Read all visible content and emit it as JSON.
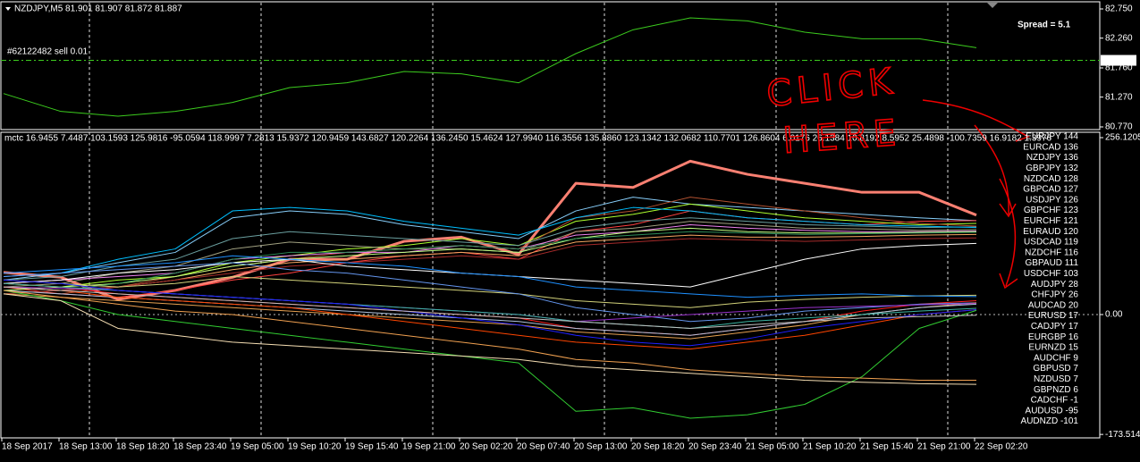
{
  "chart_data": [
    {
      "type": "line",
      "title": "NZDJPY,M5  81.901 81.907 81.872 81.887",
      "annotations": [
        "#62122482 sell 0.01",
        "Spread = 5.1"
      ],
      "values": [
        81.33,
        81.03,
        80.95,
        81.03,
        81.18,
        81.43,
        81.51,
        81.7,
        81.66,
        81.51,
        82.0,
        82.4,
        82.6,
        82.55,
        82.36,
        82.25,
        82.25,
        82.1
      ],
      "color": "#3ccc1e",
      "current_price": 81.887,
      "ylim": [
        80.725,
        82.855
      ],
      "yticks": [
        {
          "value": 82.75,
          "label": "82.750"
        },
        {
          "value": 82.26,
          "label": "82.260"
        },
        {
          "value": 81.76,
          "label": "81.760"
        },
        {
          "value": 81.27,
          "label": "81.270"
        },
        {
          "value": 80.77,
          "label": "80.770"
        }
      ],
      "grid": true
    },
    {
      "type": "line",
      "title": "mctc 16.9455 7.4487 103.1593 125.9816 -95.0594 118.9997 7.2813 15.9372 120.9459 143.6827 120.2264 136.2450 15.4624 127.9940 116.3556 135.8860 123.1342 132.0682 110.7701 126.8604 6.0176 26.1384 10.8192 8.5952 25.4898 -100.7359 16.9182 1.3976",
      "annotations": [
        "CLICK",
        "HERE"
      ],
      "categories": [
        "18 Sep 2017",
        "18 Sep 13:00",
        "18 Sep 18:20",
        "18 Sep 23:40",
        "19 Sep 05:00",
        "19 Sep 10:20",
        "19 Sep 15:40",
        "19 Sep 21:00",
        "20 Sep 02:20",
        "20 Sep 07:40",
        "20 Sep 13:00",
        "20 Sep 18:20",
        "20 Sep 23:40",
        "21 Sep 05:00",
        "21 Sep 10:20",
        "21 Sep 15:40",
        "21 Sep 21:00",
        "22 Sep 02:20"
      ],
      "ylim": [
        -178.5,
        263.9
      ],
      "yticks": [
        256.1205,
        {
          "value": 0,
          "label": "0.00"
        },
        -173.5147
      ],
      "legend": "right",
      "grid": true,
      "series": [
        {
          "name": "EURJPY 144",
          "color": "#fa8072",
          "width": 3,
          "values": [
            61,
            54,
            22,
            35,
            54,
            80,
            80,
            106,
            112,
            87,
            190,
            184,
            222,
            203,
            190,
            177,
            177,
            144
          ]
        },
        {
          "name": "EURCAD 136",
          "color": "#87cefa",
          "values": [
            50,
            60,
            75,
            90,
            140,
            150,
            145,
            130,
            120,
            110,
            150,
            170,
            160,
            155,
            150,
            145,
            140,
            136
          ]
        },
        {
          "name": "NZDJPY 136",
          "color": "#ff4040",
          "values": [
            40,
            30,
            25,
            35,
            50,
            60,
            75,
            85,
            90,
            80,
            120,
            130,
            150,
            140,
            135,
            130,
            135,
            136
          ]
        },
        {
          "name": "GBPJPY 132",
          "color": "#adff2f",
          "values": [
            45,
            40,
            50,
            55,
            75,
            85,
            95,
            100,
            110,
            100,
            135,
            145,
            160,
            150,
            140,
            135,
            130,
            132
          ]
        },
        {
          "name": "NZDCAD 128",
          "color": "#b05030",
          "values": [
            35,
            30,
            40,
            55,
            70,
            80,
            90,
            95,
            100,
            95,
            140,
            150,
            170,
            160,
            150,
            140,
            132,
            128
          ]
        },
        {
          "name": "GBPCAD 127",
          "color": "#6a9f9f",
          "values": [
            50,
            55,
            70,
            80,
            110,
            120,
            115,
            110,
            105,
            100,
            125,
            135,
            140,
            135,
            130,
            128,
            126,
            127
          ]
        },
        {
          "name": "USDJPY 126",
          "color": "#00bfff",
          "values": [
            55,
            60,
            80,
            95,
            150,
            155,
            150,
            135,
            125,
            115,
            140,
            155,
            150,
            140,
            135,
            130,
            128,
            126
          ]
        },
        {
          "name": "GBPCHF 123",
          "color": "#a0a080",
          "values": [
            40,
            45,
            60,
            70,
            95,
            105,
            100,
            95,
            95,
            90,
            120,
            125,
            135,
            130,
            125,
            124,
            122,
            123
          ]
        },
        {
          "name": "EURCHF 121",
          "color": "#ee82ee",
          "values": [
            45,
            50,
            55,
            60,
            80,
            85,
            90,
            90,
            100,
            95,
            115,
            120,
            130,
            125,
            122,
            120,
            120,
            121
          ]
        },
        {
          "name": "EURAUD 120",
          "color": "#c0ff80",
          "values": [
            35,
            40,
            45,
            55,
            70,
            80,
            85,
            90,
            95,
            90,
            110,
            120,
            125,
            120,
            118,
            118,
            119,
            120
          ]
        },
        {
          "name": "USDCAD 119",
          "color": "#2e8b57",
          "values": [
            30,
            35,
            45,
            60,
            80,
            90,
            90,
            95,
            100,
            95,
            110,
            115,
            120,
            118,
            116,
            117,
            118,
            119
          ]
        },
        {
          "name": "NZDCHF 116",
          "color": "#f4a460",
          "values": [
            40,
            35,
            40,
            50,
            65,
            75,
            80,
            85,
            90,
            85,
            105,
            110,
            115,
            112,
            112,
            113,
            115,
            116
          ]
        },
        {
          "name": "GBPAUD 111",
          "color": "#a52a2a",
          "values": [
            30,
            35,
            40,
            50,
            60,
            70,
            75,
            80,
            85,
            80,
            100,
            105,
            110,
            108,
            106,
            108,
            110,
            111
          ]
        },
        {
          "name": "USDCHF 103",
          "color": "#ffffff",
          "values": [
            45,
            50,
            60,
            65,
            75,
            80,
            70,
            65,
            60,
            55,
            50,
            45,
            40,
            60,
            80,
            95,
            100,
            103
          ]
        },
        {
          "name": "AUDJPY 28",
          "color": "#d2d27a",
          "values": [
            50,
            45,
            40,
            45,
            55,
            50,
            45,
            40,
            35,
            30,
            20,
            15,
            10,
            18,
            22,
            25,
            27,
            28
          ]
        },
        {
          "name": "CHFJPY 26",
          "color": "#1e90ff",
          "values": [
            60,
            65,
            70,
            75,
            85,
            80,
            75,
            70,
            60,
            55,
            40,
            35,
            30,
            25,
            28,
            30,
            27,
            26
          ]
        },
        {
          "name": "AUDCAD 20",
          "color": "#ff2020",
          "values": [
            45,
            40,
            30,
            25,
            20,
            15,
            10,
            5,
            0,
            -5,
            -20,
            -25,
            -30,
            -20,
            -10,
            5,
            15,
            20
          ]
        },
        {
          "name": "EURUSD 17",
          "color": "#6495ed",
          "values": [
            55,
            60,
            65,
            70,
            75,
            65,
            60,
            50,
            40,
            30,
            10,
            0,
            -10,
            -5,
            5,
            10,
            15,
            17
          ]
        },
        {
          "name": "CADJPY 17",
          "color": "#e6a050",
          "values": [
            30,
            25,
            20,
            15,
            10,
            5,
            0,
            -5,
            -10,
            -15,
            -25,
            -30,
            -35,
            -25,
            -15,
            0,
            10,
            17
          ]
        },
        {
          "name": "EURGBP 16",
          "color": "#9932cc",
          "values": [
            40,
            38,
            35,
            30,
            25,
            20,
            15,
            10,
            5,
            0,
            -10,
            -5,
            0,
            5,
            10,
            12,
            14,
            16
          ]
        },
        {
          "name": "EURNZD 15",
          "color": "#b0c4de",
          "values": [
            35,
            30,
            25,
            20,
            15,
            10,
            5,
            0,
            -5,
            -10,
            -20,
            -25,
            -30,
            -20,
            -10,
            0,
            10,
            15
          ]
        },
        {
          "name": "AUDCHF 9",
          "color": "#3cb3a0",
          "values": [
            45,
            40,
            35,
            30,
            25,
            20,
            15,
            10,
            5,
            0,
            -10,
            -15,
            -20,
            -10,
            -5,
            0,
            5,
            9
          ]
        },
        {
          "name": "GBPUSD 7",
          "color": "#ff4500",
          "values": [
            40,
            35,
            25,
            20,
            15,
            10,
            0,
            -10,
            -20,
            -30,
            -40,
            -45,
            -50,
            -40,
            -30,
            -15,
            0,
            7
          ]
        },
        {
          "name": "NZDUSD 7",
          "color": "#2020ff",
          "values": [
            50,
            45,
            35,
            30,
            25,
            20,
            15,
            5,
            -5,
            -15,
            -30,
            -40,
            -45,
            -35,
            -20,
            -10,
            0,
            7
          ]
        },
        {
          "name": "GBPNZD 6",
          "color": "#32cd32",
          "values": [
            35,
            20,
            0,
            -10,
            -20,
            -30,
            -40,
            -50,
            -60,
            -70,
            -140,
            -135,
            -150,
            -145,
            -130,
            -90,
            -20,
            6
          ]
        },
        {
          "name": "CADCHF -1",
          "color": "#c0c0c0",
          "values": [
            40,
            35,
            30,
            25,
            20,
            15,
            10,
            5,
            0,
            -5,
            -10,
            -15,
            -20,
            -15,
            -10,
            -5,
            -3,
            -1
          ]
        },
        {
          "name": "AUDUSD -95",
          "color": "#f0a050",
          "values": [
            35,
            25,
            15,
            5,
            0,
            -10,
            -20,
            -30,
            -40,
            -50,
            -65,
            -70,
            -80,
            -85,
            -90,
            -92,
            -95,
            -95
          ]
        },
        {
          "name": "AUDNZD -101",
          "color": "#f5deb3",
          "values": [
            30,
            20,
            -20,
            -30,
            -40,
            -45,
            -50,
            -55,
            -60,
            -65,
            -75,
            -80,
            -85,
            -90,
            -95,
            -98,
            -100,
            -101
          ]
        }
      ]
    }
  ]
}
